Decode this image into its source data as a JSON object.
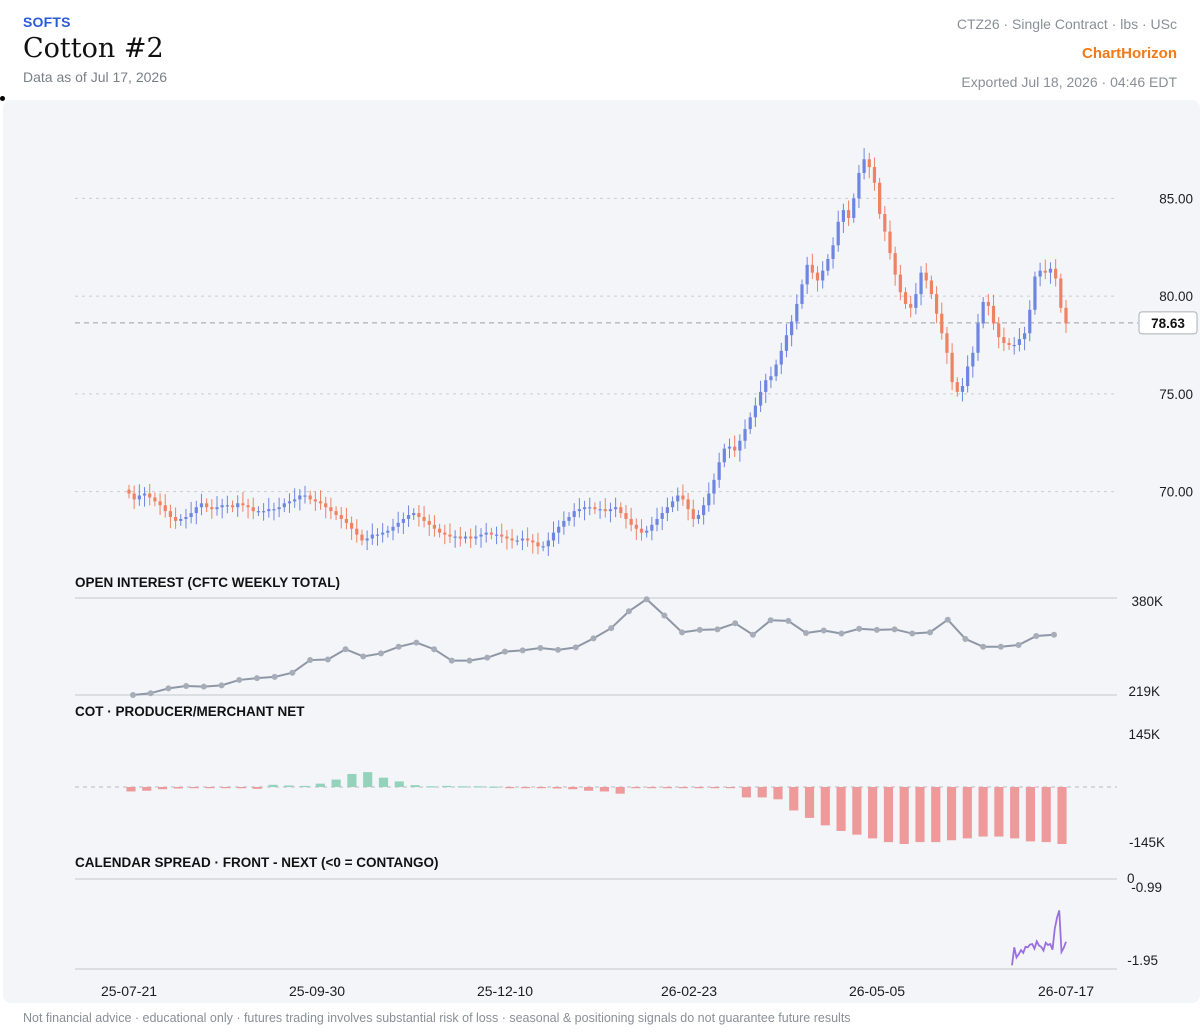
{
  "header": {
    "category": "SOFTS",
    "title": "Cotton #2",
    "as_of": "Data as of Jul 17, 2026",
    "contract": "CTZ26 · Single Contract · lbs · USc",
    "brand": "ChartHorizon",
    "exported": "Exported Jul 18, 2026 · 04:46 EDT"
  },
  "footer": {
    "disclaimer": "Not financial advice · educational only · futures trading involves substantial risk of loss · seasonal & positioning signals do not guarantee future results"
  },
  "colors": {
    "up": "#6f86e0",
    "down": "#ee8262",
    "oi_line": "#8f97a6",
    "cot_pos": "#93d3bb",
    "cot_neg": "#ee9a9a",
    "spread": "#9a6fe0",
    "grid": "#c9ccd2"
  },
  "chart_data": [
    {
      "type": "candlestick",
      "panel": "price",
      "x_tick_labels": [
        "25-07-21",
        "25-09-30",
        "25-12-10",
        "26-02-23",
        "26-05-05",
        "26-07-17"
      ],
      "y_ticks": [
        "85.00",
        "80.00",
        "75.00",
        "70.00"
      ],
      "ylim": [
        66.5,
        88.6
      ],
      "last_price": "78.63",
      "closes": [
        69.9,
        69.6,
        69.8,
        69.9,
        69.7,
        69.5,
        69.3,
        69.0,
        68.7,
        68.5,
        68.6,
        68.7,
        68.9,
        69.2,
        69.4,
        69.2,
        69.1,
        69.2,
        69.3,
        69.3,
        69.2,
        69.4,
        69.3,
        69.2,
        69.0,
        69.0,
        69.0,
        69.1,
        69.1,
        69.2,
        69.4,
        69.5,
        69.6,
        69.8,
        69.8,
        69.6,
        69.5,
        69.4,
        69.2,
        69.0,
        68.8,
        68.6,
        68.4,
        68.1,
        67.8,
        67.5,
        67.6,
        67.8,
        67.8,
        67.9,
        68.0,
        68.2,
        68.4,
        68.6,
        68.8,
        68.9,
        68.7,
        68.5,
        68.3,
        68.1,
        67.9,
        67.8,
        67.7,
        67.7,
        67.6,
        67.7,
        67.6,
        67.7,
        67.8,
        67.9,
        67.8,
        67.8,
        67.7,
        67.6,
        67.5,
        67.5,
        67.6,
        67.5,
        67.4,
        67.2,
        67.2,
        67.5,
        67.9,
        68.2,
        68.5,
        68.7,
        69.0,
        69.1,
        69.2,
        69.2,
        69.1,
        69.1,
        69.0,
        69.1,
        69.2,
        68.9,
        68.6,
        68.3,
        68.1,
        67.9,
        68.0,
        68.3,
        68.6,
        68.9,
        69.2,
        69.5,
        69.8,
        69.6,
        69.1,
        68.6,
        68.8,
        69.3,
        69.9,
        70.6,
        71.5,
        72.2,
        72.3,
        72.1,
        72.6,
        73.2,
        73.8,
        74.4,
        75.1,
        75.7,
        75.9,
        76.5,
        77.2,
        78.0,
        78.7,
        79.6,
        80.6,
        81.6,
        81.2,
        80.8,
        81.3,
        81.9,
        82.6,
        83.8,
        84.4,
        84.0,
        85.0,
        86.3,
        87.0,
        86.6,
        85.8,
        84.2,
        83.3,
        82.2,
        81.1,
        80.2,
        79.6,
        79.4,
        80.1,
        81.2,
        80.8,
        80.1,
        79.1,
        78.1,
        77.1,
        75.6,
        75.1,
        75.4,
        76.4,
        77.1,
        78.6,
        79.7,
        79.5,
        78.6,
        77.9,
        77.6,
        77.5,
        77.5,
        77.8,
        78.1,
        79.3,
        81.0,
        81.3,
        81.2,
        81.4,
        80.9,
        79.4,
        78.6
      ]
    },
    {
      "type": "line",
      "panel": "open_interest",
      "title": "OPEN INTEREST (CFTC WEEKLY TOTAL)",
      "y_tick_labels": [
        "380K",
        "219K"
      ],
      "ylim": [
        219,
        380
      ],
      "values": [
        219,
        222,
        230,
        234,
        233,
        235,
        244,
        247,
        249,
        256,
        277,
        278,
        295,
        283,
        288,
        299,
        306,
        295,
        276,
        276,
        281,
        291,
        293,
        297,
        294,
        298,
        313,
        330,
        358,
        378,
        351,
        323,
        327,
        328,
        338,
        319,
        343,
        342,
        322,
        326,
        321,
        329,
        327,
        328,
        321,
        323,
        344,
        312,
        299,
        299,
        302,
        317,
        319
      ]
    },
    {
      "type": "bar",
      "panel": "cot",
      "title": "COT · PRODUCER/MERCHANT NET",
      "y_tick_labels": [
        "145K",
        "-145K"
      ],
      "ylim": [
        -145,
        145
      ],
      "values": [
        -12,
        -10,
        -6,
        -4,
        -2,
        -3,
        -2,
        -2,
        -5,
        6,
        4,
        3,
        9,
        20,
        35,
        40,
        25,
        15,
        5,
        2,
        3,
        2,
        2,
        1,
        -2,
        -2,
        -3,
        -4,
        -6,
        -10,
        -12,
        -18,
        -3,
        -2,
        -2,
        -2,
        -2,
        -2,
        -2,
        -28,
        -28,
        -33,
        -63,
        -83,
        -103,
        -118,
        -128,
        -138,
        -148,
        -153,
        -148,
        -148,
        -143,
        -138,
        -133,
        -133,
        -138,
        -146,
        -148,
        -153
      ]
    },
    {
      "type": "line",
      "panel": "calendar_spread",
      "title": "CALENDAR SPREAD · FRONT - NEXT (<0 = CONTANGO)",
      "y_tick_labels": [
        "0",
        "-0.99",
        "-1.95"
      ],
      "ylim": [
        -1.95,
        0
      ],
      "values": [
        -1.87,
        -1.48,
        -1.7,
        -1.63,
        -1.54,
        -1.6,
        -1.47,
        -1.48,
        -1.42,
        -1.41,
        -1.51,
        -1.35,
        -1.44,
        -1.47,
        -1.55,
        -1.38,
        -1.43,
        -1.41,
        -1.53,
        -1.08,
        -0.84,
        -0.68,
        -1.58,
        -1.49,
        -1.36
      ]
    }
  ]
}
